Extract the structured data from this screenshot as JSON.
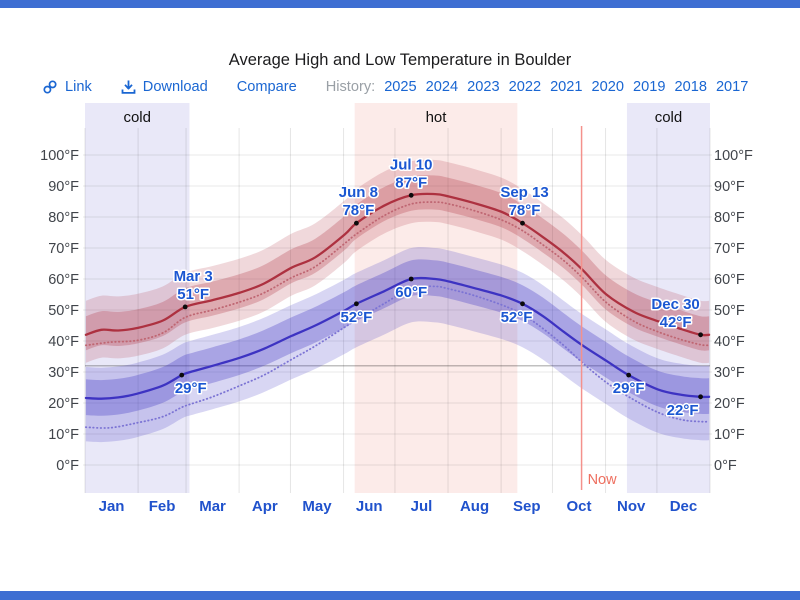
{
  "page": {
    "title": "Average High and Low Temperature in Boulder"
  },
  "toolbar": {
    "link_label": "Link",
    "download_label": "Download",
    "compare_label": "Compare",
    "history_label": "History:",
    "years": [
      "2025",
      "2024",
      "2023",
      "2022",
      "2021",
      "2020",
      "2019",
      "2018",
      "2017"
    ]
  },
  "colors": {
    "divider_bar": "#3e6ed2",
    "toolbar_link": "#1a66d2",
    "history_gray": "#9aa0a6",
    "title_text": "#1c1c1e",
    "axis_text": "#40444a",
    "season_label_text": "#111111",
    "annotation_blue": "#1b57d2",
    "month_blue": "#2052cc",
    "high_line": "#ad3140",
    "high_dotted": "#bf6672",
    "low_line": "#3d33c2",
    "low_dotted": "#7c74d4",
    "cold_band_bg": "#e9e8f8",
    "hot_band_bg": "#fcebe9",
    "now_line": "#f4918c",
    "now_text": "#ee6f5f",
    "dot": "#0b0b0b"
  },
  "chart_data": {
    "type": "line",
    "title": "Average High and Low Temperature in Boulder",
    "unit": "°F",
    "ylim": [
      0,
      100
    ],
    "y_tick_step": 10,
    "y_tick_labels": [
      "0°F",
      "10°F",
      "20°F",
      "30°F",
      "40°F",
      "50°F",
      "60°F",
      "70°F",
      "80°F",
      "90°F",
      "100°F"
    ],
    "freezing_value": 32,
    "grid": true,
    "months": [
      "Jan",
      "Feb",
      "Mar",
      "Apr",
      "May",
      "Jun",
      "Jul",
      "Aug",
      "Sep",
      "Oct",
      "Nov",
      "Dec"
    ],
    "days_per_month": [
      31,
      28,
      31,
      30,
      31,
      30,
      31,
      31,
      30,
      31,
      30,
      31
    ],
    "seasons": [
      {
        "label": "cold",
        "start_day": 0,
        "end_day": 61
      },
      {
        "label": "hot",
        "start_day": 157.5,
        "end_day": 252.5
      },
      {
        "label": "cold",
        "start_day": 316.5,
        "end_day": 365
      }
    ],
    "now": {
      "label": "Now",
      "day": 290.5
    },
    "series": [
      {
        "name": "average-high",
        "band_inner": [
          6,
          -5
        ],
        "band_outer": [
          11,
          -9
        ],
        "points": [
          [
            1,
            42
          ],
          [
            10,
            43.6
          ],
          [
            20,
            43.4
          ],
          [
            31,
            44.2
          ],
          [
            46,
            46.6
          ],
          [
            59,
            51
          ],
          [
            75,
            53.2
          ],
          [
            91,
            55.6
          ],
          [
            105,
            58.5
          ],
          [
            121,
            63.6
          ],
          [
            135,
            67
          ],
          [
            152,
            74.3
          ],
          [
            159,
            78
          ],
          [
            175,
            83.6
          ],
          [
            191,
            87
          ],
          [
            205,
            87.4
          ],
          [
            213,
            86.6
          ],
          [
            227,
            84.6
          ],
          [
            244,
            81.6
          ],
          [
            256,
            78
          ],
          [
            268,
            73.5
          ],
          [
            280,
            68.5
          ],
          [
            291,
            63
          ],
          [
            305,
            55
          ],
          [
            321,
            49.4
          ],
          [
            335,
            46.4
          ],
          [
            349,
            43.8
          ],
          [
            360,
            42
          ],
          [
            365,
            42
          ]
        ],
        "dotted_points": [
          [
            1,
            38.6
          ],
          [
            15,
            39.6
          ],
          [
            31,
            40.2
          ],
          [
            46,
            42.6
          ],
          [
            59,
            47.6
          ],
          [
            75,
            50
          ],
          [
            91,
            52.6
          ],
          [
            105,
            55.5
          ],
          [
            121,
            60.4
          ],
          [
            135,
            64
          ],
          [
            152,
            71.4
          ],
          [
            159,
            74.5
          ],
          [
            175,
            80.4
          ],
          [
            191,
            84.2
          ],
          [
            205,
            84.8
          ],
          [
            213,
            84.2
          ],
          [
            227,
            82.2
          ],
          [
            244,
            79
          ],
          [
            256,
            75.6
          ],
          [
            268,
            71
          ],
          [
            280,
            66
          ],
          [
            291,
            60.4
          ],
          [
            305,
            52.4
          ],
          [
            321,
            46.4
          ],
          [
            335,
            43
          ],
          [
            349,
            40.4
          ],
          [
            360,
            38.8
          ],
          [
            365,
            38.6
          ]
        ]
      },
      {
        "name": "average-low",
        "band_inner": [
          6,
          -5.5
        ],
        "band_outer": [
          10,
          -14
        ],
        "points": [
          [
            1,
            21.6
          ],
          [
            10,
            21.4
          ],
          [
            20,
            21.8
          ],
          [
            31,
            23
          ],
          [
            46,
            25.6
          ],
          [
            57,
            29
          ],
          [
            62,
            30
          ],
          [
            75,
            32
          ],
          [
            91,
            34.6
          ],
          [
            105,
            37.5
          ],
          [
            121,
            41.6
          ],
          [
            135,
            45
          ],
          [
            152,
            49.8
          ],
          [
            159,
            52
          ],
          [
            175,
            56
          ],
          [
            191,
            60
          ],
          [
            205,
            60
          ],
          [
            213,
            59.2
          ],
          [
            227,
            57.2
          ],
          [
            244,
            54.6
          ],
          [
            256,
            52
          ],
          [
            268,
            48
          ],
          [
            280,
            43
          ],
          [
            291,
            38.6
          ],
          [
            305,
            33.6
          ],
          [
            318,
            29
          ],
          [
            335,
            24.4
          ],
          [
            349,
            22.6
          ],
          [
            360,
            22
          ],
          [
            365,
            22
          ]
        ],
        "dotted_points": [
          [
            1,
            12.2
          ],
          [
            15,
            12
          ],
          [
            31,
            13.6
          ],
          [
            46,
            15.6
          ],
          [
            57,
            18.6
          ],
          [
            62,
            19.6
          ],
          [
            75,
            22
          ],
          [
            91,
            25.6
          ],
          [
            105,
            29
          ],
          [
            121,
            34
          ],
          [
            135,
            38.4
          ],
          [
            152,
            44.4
          ],
          [
            159,
            46.8
          ],
          [
            175,
            52
          ],
          [
            191,
            57
          ],
          [
            205,
            57.6
          ],
          [
            213,
            56.8
          ],
          [
            227,
            54.8
          ],
          [
            244,
            51.6
          ],
          [
            256,
            48.6
          ],
          [
            268,
            44
          ],
          [
            280,
            38.6
          ],
          [
            291,
            33
          ],
          [
            305,
            26.6
          ],
          [
            318,
            22
          ],
          [
            335,
            17
          ],
          [
            349,
            14.6
          ],
          [
            360,
            14
          ],
          [
            365,
            14
          ]
        ]
      }
    ],
    "annotations": [
      {
        "series": "high",
        "label_date": "Mar 3",
        "label_value": "51°F",
        "day": 59,
        "value": 51,
        "placement": "above",
        "dx": 8
      },
      {
        "series": "high",
        "label_date": "Jun 8",
        "label_value": "78°F",
        "day": 159,
        "value": 78,
        "placement": "above",
        "dx": 2
      },
      {
        "series": "high",
        "label_date": "Jul 10",
        "label_value": "87°F",
        "day": 191,
        "value": 87,
        "placement": "above",
        "dx": 0
      },
      {
        "series": "high",
        "label_date": "Sep 13",
        "label_value": "78°F",
        "day": 256,
        "value": 78,
        "placement": "above",
        "dx": 2
      },
      {
        "series": "high",
        "label_date": "Dec 30",
        "label_value": "42°F",
        "day": 360,
        "value": 42,
        "placement": "above",
        "dx": -25
      },
      {
        "series": "low",
        "label_value": "29°F",
        "day": 57,
        "value": 29,
        "placement": "below",
        "dx": 9
      },
      {
        "series": "low",
        "label_value": "52°F",
        "day": 159,
        "value": 52,
        "placement": "below",
        "dx": 0
      },
      {
        "series": "low",
        "label_value": "60°F",
        "day": 191,
        "value": 60,
        "placement": "below",
        "dx": 0
      },
      {
        "series": "low",
        "label_value": "52°F",
        "day": 256,
        "value": 52,
        "placement": "below",
        "dx": -6
      },
      {
        "series": "low",
        "label_value": "29°F",
        "day": 318,
        "value": 29,
        "placement": "below",
        "dx": 0
      },
      {
        "series": "low",
        "label_value": "22°F",
        "day": 360,
        "value": 22,
        "placement": "below",
        "dx": -18
      }
    ]
  }
}
